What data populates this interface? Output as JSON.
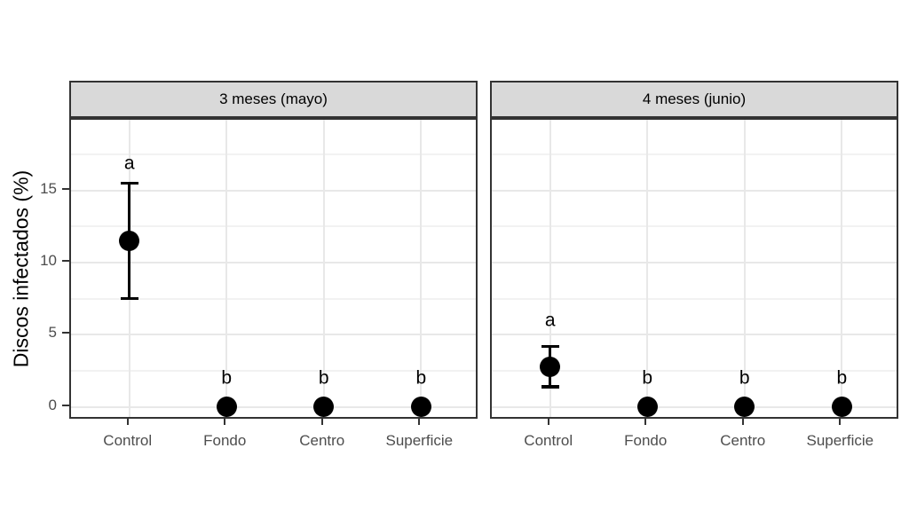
{
  "chart_data": {
    "type": "scatter",
    "subtype": "pointrange-faceted",
    "title": "",
    "xlabel": "",
    "ylabel": "Discos infectados (%)",
    "categories": [
      "Control",
      "Fondo",
      "Centro",
      "Superficie"
    ],
    "y_ticks": [
      0,
      5,
      10,
      15
    ],
    "y_tick_labels": [
      "0",
      "5",
      "10",
      "15"
    ],
    "y_minor_ticks": [
      2.5,
      7.5,
      12.5,
      17.5
    ],
    "ylim": [
      -0.95,
      19.9
    ],
    "grid": true,
    "legend": "none",
    "facets": [
      {
        "label": "3 meses (mayo)",
        "points": [
          {
            "category": "Control",
            "mean": 11.5,
            "lower": 7.5,
            "upper": 15.5,
            "sig_letter": "a",
            "sig_letter_y": 16.9
          },
          {
            "category": "Fondo",
            "mean": 0,
            "lower": 0,
            "upper": 0,
            "sig_letter": "b",
            "sig_letter_y": 2.0
          },
          {
            "category": "Centro",
            "mean": 0,
            "lower": 0,
            "upper": 0,
            "sig_letter": "b",
            "sig_letter_y": 2.0
          },
          {
            "category": "Superficie",
            "mean": 0,
            "lower": 0,
            "upper": 0,
            "sig_letter": "b",
            "sig_letter_y": 2.0
          }
        ]
      },
      {
        "label": "4 meses (junio)",
        "points": [
          {
            "category": "Control",
            "mean": 2.8,
            "lower": 1.4,
            "upper": 4.2,
            "sig_letter": "a",
            "sig_letter_y": 6.0
          },
          {
            "category": "Fondo",
            "mean": 0,
            "lower": 0,
            "upper": 0,
            "sig_letter": "b",
            "sig_letter_y": 2.0
          },
          {
            "category": "Centro",
            "mean": 0,
            "lower": 0,
            "upper": 0,
            "sig_letter": "b",
            "sig_letter_y": 2.0
          },
          {
            "category": "Superficie",
            "mean": 0,
            "lower": 0,
            "upper": 0,
            "sig_letter": "b",
            "sig_letter_y": 2.0
          }
        ]
      }
    ],
    "colors": {
      "point": "#000000",
      "error_bar": "#000000",
      "strip_fill": "#d9d9d9",
      "strip_border": "#333333",
      "panel_border": "#333333",
      "grid_major": "#e8e8e8",
      "grid_minor": "#f2f2f2",
      "axis_text": "#4d4d4d",
      "axis_title": "#000000",
      "background": "#ffffff"
    }
  }
}
